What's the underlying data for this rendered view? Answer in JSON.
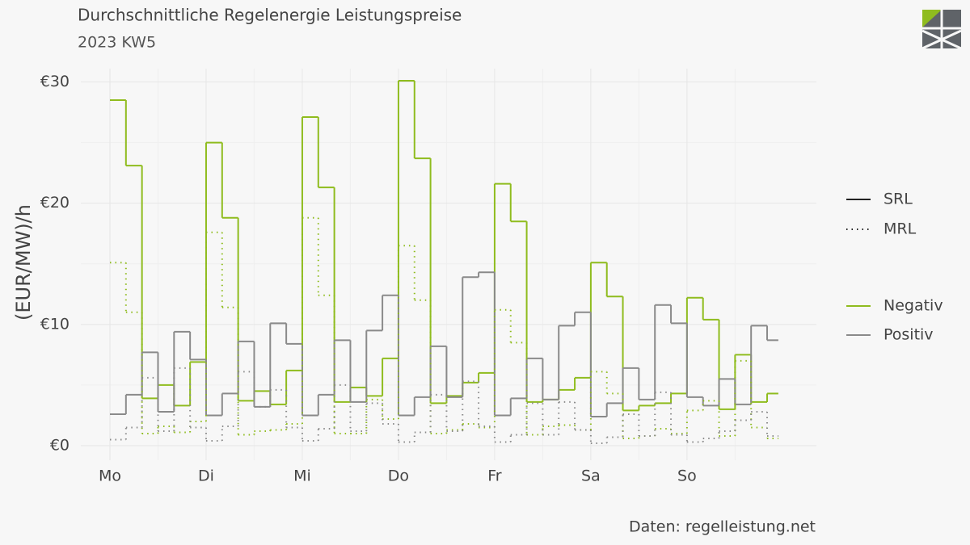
{
  "chart_data": {
    "type": "step",
    "title": "Durchschnittliche Regelenergie Leistungspreise",
    "subtitle": "2023 KW5",
    "ylabel": "(EUR/MW)/h",
    "caption": "Daten: regelleistung.net",
    "x": [
      0,
      4,
      8,
      12,
      16,
      20,
      24,
      28,
      32,
      36,
      40,
      44,
      48,
      52,
      56,
      60,
      64,
      68,
      72,
      76,
      80,
      84,
      88,
      92,
      96,
      100,
      104,
      108,
      112,
      116,
      120,
      124,
      128,
      132,
      136,
      140,
      144,
      148,
      152,
      156,
      160,
      164
    ],
    "xlim": [
      -7.26,
      176.3
    ],
    "xticks": [
      {
        "value": 0,
        "label": "Mo"
      },
      {
        "value": 24,
        "label": "Di"
      },
      {
        "value": 48,
        "label": "Mi"
      },
      {
        "value": 72,
        "label": "Do"
      },
      {
        "value": 96,
        "label": "Fr"
      },
      {
        "value": 120,
        "label": "Sa"
      },
      {
        "value": 144,
        "label": "So"
      }
    ],
    "xminor": [
      12,
      36,
      60,
      84,
      108,
      132,
      156
    ],
    "ylim": [
      -1.2,
      31.1
    ],
    "yticks": [
      {
        "value": 0,
        "label": "€0"
      },
      {
        "value": 10,
        "label": "€10"
      },
      {
        "value": 20,
        "label": "€20"
      },
      {
        "value": 30,
        "label": "€30"
      }
    ],
    "yminor": [
      5,
      15,
      25
    ],
    "grid": true,
    "linetypes": [
      {
        "name": "SRL",
        "dash": "solid"
      },
      {
        "name": "MRL",
        "dash": "dotted"
      }
    ],
    "colors": [
      {
        "name": "Negativ",
        "color": "#8fbc1e"
      },
      {
        "name": "Positiv",
        "color": "#8a8a8a"
      }
    ],
    "series": [
      {
        "linetype": 0,
        "color": 0,
        "values": [
          28.5,
          23.1,
          3.9,
          5.0,
          3.3,
          6.9,
          25.0,
          18.8,
          3.7,
          4.5,
          3.4,
          6.2,
          27.1,
          21.3,
          3.6,
          4.8,
          4.1,
          7.2,
          30.1,
          23.7,
          3.5,
          4.1,
          5.2,
          6.0,
          21.6,
          18.5,
          3.6,
          3.8,
          4.6,
          5.6,
          15.1,
          12.3,
          2.9,
          3.3,
          3.5,
          4.3,
          12.2,
          10.4,
          3.0,
          7.5,
          3.6,
          4.3
        ]
      },
      {
        "linetype": 0,
        "color": 1,
        "values": [
          2.6,
          4.2,
          7.7,
          2.8,
          9.4,
          7.1,
          2.5,
          4.3,
          8.6,
          3.2,
          10.1,
          8.4,
          2.5,
          4.2,
          8.7,
          3.6,
          9.5,
          12.4,
          2.5,
          4.0,
          8.2,
          4.0,
          13.9,
          14.3,
          2.5,
          3.9,
          7.2,
          3.8,
          9.9,
          11.0,
          2.4,
          3.5,
          6.4,
          3.8,
          11.6,
          10.1,
          4.0,
          3.3,
          5.5,
          3.4,
          9.9,
          8.7
        ]
      },
      {
        "linetype": 1,
        "color": 0,
        "values": [
          15.1,
          11.0,
          1.0,
          1.6,
          1.1,
          2.0,
          17.6,
          11.4,
          0.9,
          1.2,
          1.3,
          1.8,
          18.8,
          12.4,
          1.0,
          1.0,
          3.8,
          2.2,
          16.5,
          12.0,
          1.0,
          1.3,
          1.8,
          1.5,
          11.2,
          8.5,
          0.9,
          1.6,
          1.7,
          1.3,
          6.1,
          4.3,
          0.6,
          0.8,
          1.4,
          1.0,
          2.9,
          3.7,
          0.8,
          7.0,
          1.5,
          0.6
        ]
      },
      {
        "linetype": 1,
        "color": 1,
        "values": [
          0.5,
          1.5,
          5.6,
          1.2,
          6.4,
          1.5,
          0.4,
          1.6,
          6.1,
          3.2,
          4.6,
          1.5,
          0.4,
          1.4,
          5.0,
          1.2,
          3.5,
          1.8,
          0.3,
          1.1,
          4.2,
          1.2,
          5.3,
          1.6,
          0.3,
          0.9,
          3.5,
          0.9,
          3.6,
          1.3,
          0.2,
          0.7,
          2.6,
          0.8,
          4.4,
          0.9,
          0.3,
          0.6,
          1.2,
          2.1,
          2.8,
          0.8
        ]
      }
    ]
  }
}
